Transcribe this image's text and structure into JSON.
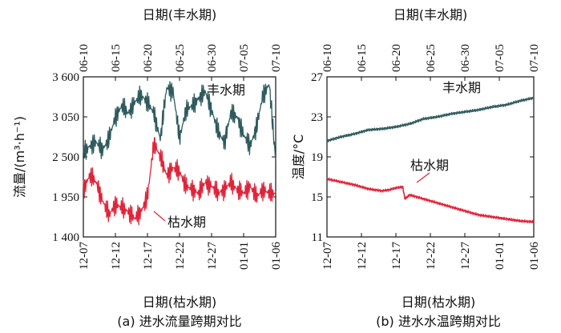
{
  "colors": {
    "wet": "#2f5a5e",
    "dry": "#e0243a",
    "axis": "#111111"
  },
  "chart_data": [
    {
      "type": "line",
      "caption": "(a) 进水流量跨期对比",
      "top_xlabel": "日期(丰水期)",
      "bottom_xlabel": "日期(枯水期)",
      "ylabel": "流量/(m³·h⁻¹)",
      "ylim": [
        1400,
        3600
      ],
      "yticks": [
        "1 400",
        "1 950",
        "2 500",
        "3 050",
        "3 600"
      ],
      "ytick_values": [
        1400,
        1950,
        2500,
        3050,
        3600
      ],
      "top_ticks": [
        "06-10",
        "06-15",
        "06-20",
        "06-25",
        "06-30",
        "07-05",
        "07-10"
      ],
      "bottom_ticks": [
        "12-07",
        "12-12",
        "12-17",
        "12-22",
        "12-27",
        "01-01",
        "01-06"
      ],
      "series": [
        {
          "name": "丰水期",
          "annotation": "丰水期",
          "x": [
            0,
            1,
            2,
            3,
            4,
            5,
            6,
            7,
            8,
            9,
            10,
            11,
            12,
            13,
            14,
            15,
            16,
            17,
            18,
            19,
            20,
            21,
            22,
            23,
            24,
            25,
            26,
            27,
            28,
            29,
            30
          ],
          "values": [
            2550,
            2650,
            2700,
            2600,
            2750,
            3050,
            3200,
            3100,
            3250,
            3350,
            3250,
            3100,
            2750,
            3450,
            3400,
            2750,
            3150,
            3200,
            3300,
            3400,
            3150,
            2850,
            2700,
            3100,
            3050,
            2800,
            2650,
            2900,
            3350,
            3500,
            2450
          ]
        },
        {
          "name": "枯水期",
          "annotation": "枯水期",
          "x": [
            0,
            1,
            2,
            3,
            4,
            5,
            6,
            7,
            8,
            9,
            10,
            11,
            12,
            13,
            14,
            15,
            16,
            17,
            18,
            19,
            20,
            21,
            22,
            23,
            24,
            25,
            26,
            27,
            28,
            29,
            30
          ],
          "values": [
            2050,
            2250,
            2150,
            1900,
            1700,
            1850,
            1800,
            1750,
            1650,
            1750,
            1950,
            2700,
            2500,
            2250,
            2350,
            2300,
            2100,
            2050,
            2000,
            2150,
            2100,
            2000,
            2050,
            2150,
            2050,
            2000,
            2100,
            1950,
            2050,
            2000,
            2000
          ]
        }
      ]
    },
    {
      "type": "line",
      "caption": "(b) 进水水温跨期对比",
      "top_xlabel": "日期(丰水期)",
      "bottom_xlabel": "日期(枯水期)",
      "ylabel": "温度/°C",
      "ylim": [
        11,
        27
      ],
      "yticks": [
        "11",
        "15",
        "19",
        "23",
        "27"
      ],
      "ytick_values": [
        11,
        15,
        19,
        23,
        27
      ],
      "top_ticks": [
        "06-10",
        "06-15",
        "06-20",
        "06-25",
        "06-30",
        "07-05",
        "07-10"
      ],
      "bottom_ticks": [
        "12-07",
        "12-12",
        "12-17",
        "12-22",
        "12-27",
        "01-01",
        "01-06"
      ],
      "series": [
        {
          "name": "丰水期",
          "annotation": "丰水期",
          "x": [
            0,
            2,
            4,
            6,
            8,
            10,
            12,
            14,
            16,
            18,
            20,
            22,
            24,
            26,
            28,
            30
          ],
          "values": [
            20.6,
            21.0,
            21.3,
            21.7,
            21.8,
            22.0,
            22.3,
            22.8,
            23.0,
            23.3,
            23.5,
            23.7,
            24.0,
            24.2,
            24.6,
            24.9
          ]
        },
        {
          "name": "枯水期",
          "annotation": "枯水期",
          "x": [
            0,
            2,
            4,
            6,
            8,
            9,
            10,
            11,
            11.3,
            12,
            14,
            16,
            18,
            20,
            22,
            24,
            26,
            28,
            30
          ],
          "values": [
            16.8,
            16.5,
            16.2,
            15.8,
            15.6,
            15.7,
            15.9,
            16.0,
            14.8,
            15.2,
            14.8,
            14.4,
            14.0,
            13.6,
            13.2,
            13.0,
            12.8,
            12.6,
            12.5
          ]
        }
      ]
    }
  ]
}
